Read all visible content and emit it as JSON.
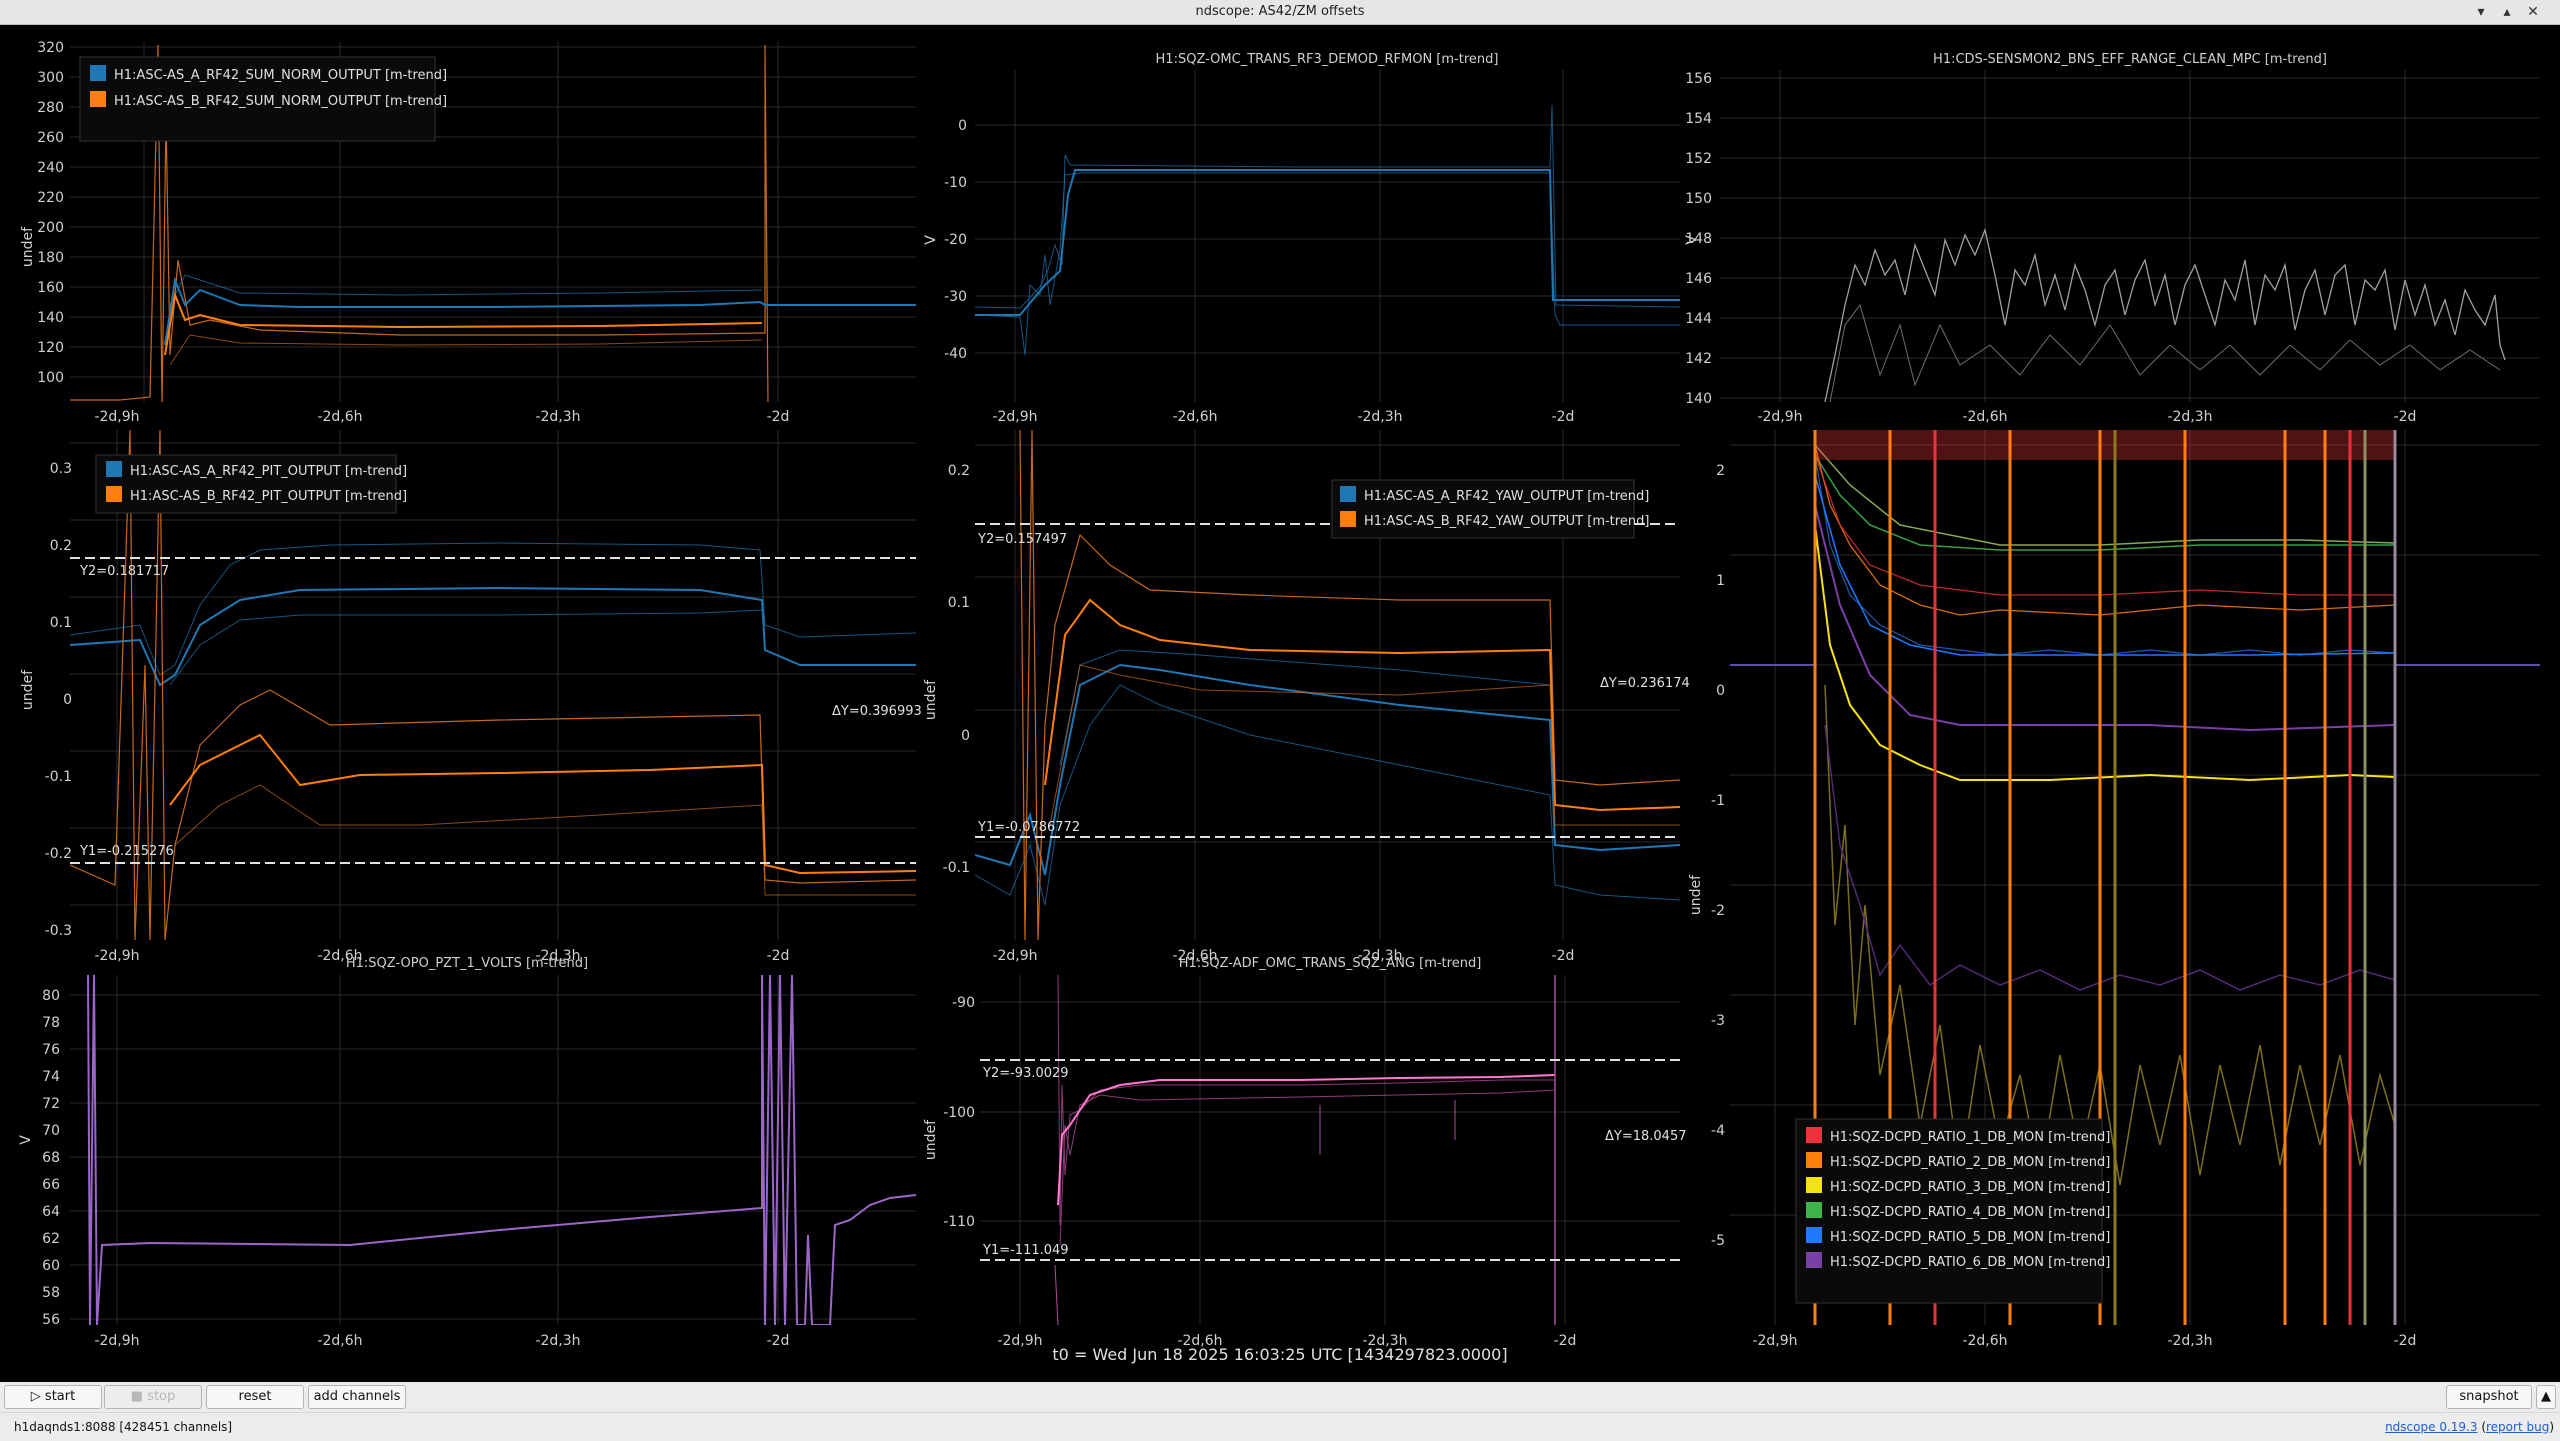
{
  "window": {
    "title": "ndscope: AS42/ZM offsets"
  },
  "footer_time": "t0 = Wed Jun 18 2025 16:03:25 UTC [1434297823.0000]",
  "toolbar": {
    "start_online": "start online",
    "stop_online": "stop online",
    "reset": "reset",
    "add_channels": "add channels",
    "snapshot": "snapshot"
  },
  "status": {
    "server": "h1daqnds1:8088",
    "channels": "[428451 channels]",
    "version_label": "ndscope",
    "version": "0.19.3",
    "report_bug": "report bug"
  },
  "xticks": [
    "-2d,9h",
    "-2d,6h",
    "-2d,3h",
    "-2d"
  ],
  "plots": [
    {
      "id": "p1",
      "title": "",
      "ylabel": "undef",
      "yticks": [
        "100",
        "120",
        "140",
        "160",
        "180",
        "200",
        "220",
        "240",
        "260",
        "280",
        "300",
        "320"
      ],
      "legend": [
        "H1:ASC-AS_A_RF42_SUM_NORM_OUTPUT [m-trend]",
        "H1:ASC-AS_B_RF42_SUM_NORM_OUTPUT [m-trend]"
      ],
      "legend_colors": [
        "#1f77b4",
        "#ff7f0e"
      ]
    },
    {
      "id": "p2",
      "title": "H1:SQZ-OMC_TRANS_RF3_DEMOD_RFMON [m-trend]",
      "ylabel": "V",
      "yticks": [
        "0",
        "-10",
        "-20",
        "-30",
        "-40"
      ]
    },
    {
      "id": "p3",
      "title": "H1:CDS-SENSMON2_BNS_EFF_RANGE_CLEAN_MPC [m-trend]",
      "ylabel": "V",
      "yticks": [
        "140",
        "142",
        "144",
        "146",
        "148",
        "150",
        "152",
        "154",
        "156"
      ]
    },
    {
      "id": "p4",
      "title": "",
      "ylabel": "undef",
      "yticks": [
        "0.3",
        "0.2",
        "0.1",
        "0",
        "-0.1",
        "-0.2",
        "-0.3"
      ],
      "legend": [
        "H1:ASC-AS_A_RF42_PIT_OUTPUT [m-trend]",
        "H1:ASC-AS_B_RF42_PIT_OUTPUT [m-trend]"
      ],
      "legend_colors": [
        "#1f77b4",
        "#ff7f0e"
      ],
      "cursors": {
        "y2": "Y2=0.181717",
        "y1": "Y1=-0.215276",
        "dy": "ΔY=0.396993"
      }
    },
    {
      "id": "p5",
      "title": "",
      "ylabel": "undef",
      "yticks": [
        "0.2",
        "0.1",
        "0",
        "-0.1"
      ],
      "legend": [
        "H1:ASC-AS_A_RF42_YAW_OUTPUT [m-trend]",
        "H1:ASC-AS_B_RF42_YAW_OUTPUT [m-trend]"
      ],
      "legend_colors": [
        "#1f77b4",
        "#ff7f0e"
      ],
      "cursors": {
        "y2": "Y2=0.157497",
        "y1": "Y1=-0.0786772",
        "dy": "ΔY=0.236174"
      }
    },
    {
      "id": "p6",
      "title": "",
      "ylabel": "undef",
      "yticks": [
        "2",
        "1",
        "0",
        "-1",
        "-2",
        "-3",
        "-4",
        "-5"
      ],
      "legend": [
        "H1:SQZ-DCPD_RATIO_1_DB_MON [m-trend]",
        "H1:SQZ-DCPD_RATIO_2_DB_MON [m-trend]",
        "H1:SQZ-DCPD_RATIO_3_DB_MON [m-trend]",
        "H1:SQZ-DCPD_RATIO_4_DB_MON [m-trend]",
        "H1:SQZ-DCPD_RATIO_5_DB_MON [m-trend]",
        "H1:SQZ-DCPD_RATIO_6_DB_MON [m-trend]"
      ],
      "legend_colors": [
        "#e8333a",
        "#ff7f0e",
        "#f5e11a",
        "#3cb44b",
        "#1f78ff",
        "#7b3fa8"
      ]
    },
    {
      "id": "p7",
      "title": "H1:SQZ-OPO_PZT_1_VOLTS [m-trend]",
      "ylabel": "V",
      "yticks": [
        "80",
        "78",
        "76",
        "74",
        "72",
        "70",
        "68",
        "66",
        "64",
        "62",
        "60",
        "58",
        "56"
      ]
    },
    {
      "id": "p8",
      "title": "H1:SQZ-ADF_OMC_TRANS_SQZ_ANG [m-trend]",
      "ylabel": "undef",
      "yticks": [
        "-90",
        "-100",
        "-110"
      ],
      "cursors": {
        "y2": "Y2=-93.0029",
        "y1": "Y1=-111.049",
        "dy": "ΔY=18.0457"
      }
    }
  ]
}
